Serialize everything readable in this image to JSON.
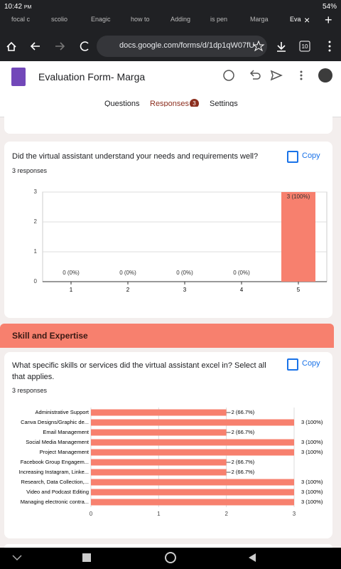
{
  "status_bar": {
    "time": "10:42",
    "period": "PM",
    "battery": "54%"
  },
  "browser": {
    "tabs": [
      "focal c",
      "scolio",
      "Enagic",
      "how to",
      "Adding",
      "is pen",
      "Marga",
      "Eva"
    ],
    "url": "docs.google.com/forms/d/1dp1qW07fU",
    "tab_count": "10"
  },
  "form": {
    "title": "Evaluation Form- Marga",
    "nav": [
      "Questions",
      "Responses",
      "Settings"
    ],
    "response_badge": "3",
    "section_title": "Skill and Expertise"
  },
  "chart_data": [
    {
      "type": "bar",
      "title": "Did the virtual assistant understand your needs and requirements well?",
      "subtitle": "3 responses",
      "copy_button": "Copy",
      "categories": [
        "1",
        "2",
        "3",
        "4",
        "5"
      ],
      "values": [
        0,
        0,
        0,
        0,
        3
      ],
      "value_labels": [
        "0 (0%)",
        "0 (0%)",
        "0 (0%)",
        "0 (0%)",
        "3 (100%)"
      ],
      "ylim": [
        0,
        3
      ],
      "yticks": [
        0,
        1,
        2,
        3
      ],
      "grid": true,
      "color": "#f7806e"
    },
    {
      "type": "hbar",
      "title": "What specific skills or services did the virtual assistant excel in? Select all that applies.",
      "subtitle": "3 responses",
      "copy_button": "Copy",
      "categories": [
        "Administrative Support",
        "Canva Designs/Graphic de...",
        "Email Management",
        "Social Media Management",
        "Project Management",
        "Facebook Group Engagem...",
        "Increasing Instagram, Linke...",
        "Research, Data Collection,...",
        "Video and Podcast Editing",
        "Managing electronic contra..."
      ],
      "values": [
        2,
        3,
        2,
        3,
        3,
        2,
        2,
        3,
        3,
        3
      ],
      "value_labels": [
        "2 (66.7%)",
        "3 (100%)",
        "2 (66.7%)",
        "3 (100%)",
        "3 (100%)",
        "2 (66.7%)",
        "2 (66.7%)",
        "3 (100%)",
        "3 (100%)",
        "3 (100%)"
      ],
      "xlim": [
        0,
        3
      ],
      "xticks": [
        0,
        1,
        2,
        3
      ],
      "grid": true,
      "color": "#f7806e"
    }
  ]
}
